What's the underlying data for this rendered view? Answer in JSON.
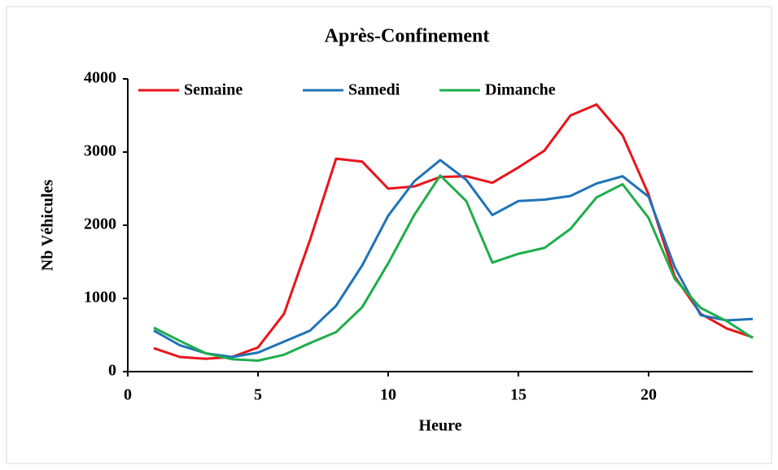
{
  "chart_data": {
    "type": "line",
    "title": "Après-Confinement",
    "x_label": "Heure",
    "y_label": "Nb Véhicules",
    "x": [
      1,
      2,
      3,
      4,
      5,
      6,
      7,
      8,
      9,
      10,
      11,
      12,
      13,
      14,
      15,
      16,
      17,
      18,
      19,
      20,
      21,
      22,
      23,
      24
    ],
    "series": [
      {
        "name": "Semaine",
        "color": "#e8141b",
        "values": [
          320,
          200,
          175,
          200,
          330,
          790,
          1800,
          2910,
          2870,
          2500,
          2530,
          2660,
          2670,
          2580,
          2790,
          3020,
          3500,
          3650,
          3230,
          2420,
          1300,
          790,
          590,
          470
        ]
      },
      {
        "name": "Samedi",
        "color": "#1f73b7",
        "values": [
          560,
          360,
          250,
          200,
          260,
          410,
          560,
          900,
          1450,
          2130,
          2600,
          2890,
          2620,
          2140,
          2330,
          2350,
          2400,
          2570,
          2670,
          2390,
          1430,
          770,
          700,
          720
        ]
      },
      {
        "name": "Dimanche",
        "color": "#1fad4b",
        "values": [
          600,
          420,
          250,
          170,
          150,
          230,
          390,
          540,
          880,
          1480,
          2140,
          2680,
          2330,
          1490,
          1610,
          1690,
          1950,
          2380,
          2560,
          2100,
          1270,
          870,
          690,
          460
        ]
      }
    ],
    "xlim": [
      0,
      24
    ],
    "xticks": [
      0,
      5,
      10,
      15,
      20
    ],
    "ylim": [
      0,
      4000
    ],
    "yticks": [
      0,
      1000,
      2000,
      3000,
      4000
    ],
    "legend": "top-left"
  }
}
